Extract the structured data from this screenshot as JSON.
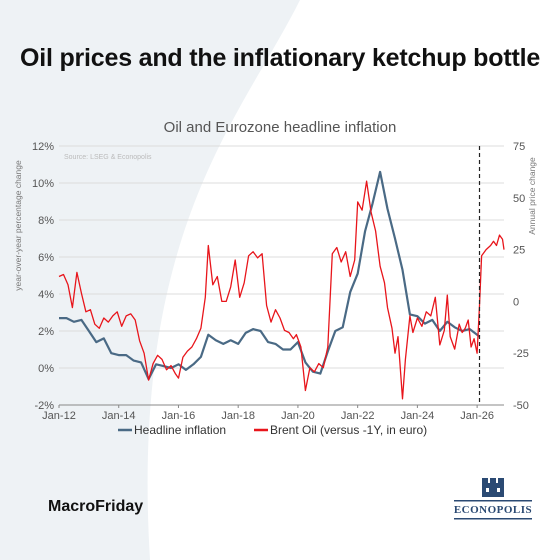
{
  "page": {
    "title": "Oil prices and the inflationary ketchup bottle",
    "footer": "MacroFriday",
    "logo_text": "ECONOPOLIS"
  },
  "colors": {
    "inflation": "#4a6a85",
    "oil": "#e8151b",
    "grid": "#dcdcdc",
    "background_shape": "#eef2f5",
    "logo": "#2b4a73"
  },
  "chart_data": {
    "type": "line",
    "title": "Oil and Eurozone headline inflation",
    "source": "Source: LSEG & Econopolis",
    "ylabel_left": "year-over-year percentage change",
    "ylabel_right": "Annual price change",
    "ylim_left": [
      -2,
      12
    ],
    "ylim_right": [
      -50,
      75
    ],
    "yticks_left": [
      "-2%",
      "0%",
      "2%",
      "4%",
      "6%",
      "8%",
      "10%",
      "12%"
    ],
    "yticks_right": [
      "-50",
      "-25",
      "0",
      "25",
      "50",
      "75"
    ],
    "xlim": [
      2012.0,
      2026.9
    ],
    "xticks": [
      "Jan-12",
      "Jan-14",
      "Jan-16",
      "Jan-18",
      "Jan-20",
      "Jan-22",
      "Jan-24",
      "Jan-26"
    ],
    "grid": true,
    "legend_position": "bottom",
    "vline_x": 2026.08,
    "series": [
      {
        "name": "Headline inflation",
        "axis": "left",
        "points": [
          [
            2012.0,
            2.7
          ],
          [
            2012.25,
            2.7
          ],
          [
            2012.5,
            2.5
          ],
          [
            2012.75,
            2.6
          ],
          [
            2013.0,
            2.0
          ],
          [
            2013.25,
            1.4
          ],
          [
            2013.5,
            1.6
          ],
          [
            2013.75,
            0.8
          ],
          [
            2014.0,
            0.7
          ],
          [
            2014.25,
            0.7
          ],
          [
            2014.5,
            0.4
          ],
          [
            2014.75,
            0.3
          ],
          [
            2015.0,
            -0.6
          ],
          [
            2015.25,
            0.2
          ],
          [
            2015.5,
            0.1
          ],
          [
            2015.75,
            0.0
          ],
          [
            2016.0,
            0.2
          ],
          [
            2016.25,
            -0.1
          ],
          [
            2016.5,
            0.2
          ],
          [
            2016.75,
            0.6
          ],
          [
            2017.0,
            1.8
          ],
          [
            2017.25,
            1.5
          ],
          [
            2017.5,
            1.3
          ],
          [
            2017.75,
            1.5
          ],
          [
            2018.0,
            1.3
          ],
          [
            2018.25,
            1.9
          ],
          [
            2018.5,
            2.1
          ],
          [
            2018.75,
            2.0
          ],
          [
            2019.0,
            1.4
          ],
          [
            2019.25,
            1.3
          ],
          [
            2019.5,
            1.0
          ],
          [
            2019.75,
            1.0
          ],
          [
            2020.0,
            1.4
          ],
          [
            2020.25,
            0.3
          ],
          [
            2020.5,
            -0.2
          ],
          [
            2020.75,
            -0.3
          ],
          [
            2021.0,
            0.9
          ],
          [
            2021.25,
            2.0
          ],
          [
            2021.5,
            2.2
          ],
          [
            2021.75,
            4.1
          ],
          [
            2022.0,
            5.1
          ],
          [
            2022.25,
            7.4
          ],
          [
            2022.5,
            8.9
          ],
          [
            2022.75,
            10.6
          ],
          [
            2023.0,
            8.6
          ],
          [
            2023.25,
            7.0
          ],
          [
            2023.5,
            5.3
          ],
          [
            2023.75,
            2.9
          ],
          [
            2024.0,
            2.8
          ],
          [
            2024.25,
            2.4
          ],
          [
            2024.5,
            2.6
          ],
          [
            2024.75,
            2.0
          ],
          [
            2025.0,
            2.5
          ],
          [
            2025.25,
            2.2
          ],
          [
            2025.5,
            2.0
          ],
          [
            2025.75,
            2.1
          ],
          [
            2026.0,
            1.8
          ],
          [
            2026.08,
            1.7
          ]
        ]
      },
      {
        "name": "Brent Oil (versus -1Y, in euro)",
        "axis": "right",
        "points": [
          [
            2012.0,
            12
          ],
          [
            2012.15,
            13
          ],
          [
            2012.3,
            8
          ],
          [
            2012.45,
            -3
          ],
          [
            2012.6,
            14
          ],
          [
            2012.75,
            4
          ],
          [
            2012.9,
            -5
          ],
          [
            2013.05,
            -4
          ],
          [
            2013.2,
            -11
          ],
          [
            2013.35,
            -13
          ],
          [
            2013.5,
            -8
          ],
          [
            2013.65,
            -10
          ],
          [
            2013.8,
            -7
          ],
          [
            2013.95,
            -5
          ],
          [
            2014.1,
            -12
          ],
          [
            2014.25,
            -7
          ],
          [
            2014.4,
            -6
          ],
          [
            2014.55,
            -9
          ],
          [
            2014.7,
            -19
          ],
          [
            2014.85,
            -25
          ],
          [
            2015.0,
            -38
          ],
          [
            2015.15,
            -30
          ],
          [
            2015.3,
            -26
          ],
          [
            2015.45,
            -28
          ],
          [
            2015.6,
            -33
          ],
          [
            2015.75,
            -31
          ],
          [
            2015.9,
            -35
          ],
          [
            2016.0,
            -37
          ],
          [
            2016.15,
            -27
          ],
          [
            2016.3,
            -24
          ],
          [
            2016.45,
            -22
          ],
          [
            2016.6,
            -18
          ],
          [
            2016.75,
            -13
          ],
          [
            2016.9,
            2
          ],
          [
            2017.0,
            27
          ],
          [
            2017.15,
            8
          ],
          [
            2017.3,
            12
          ],
          [
            2017.45,
            0
          ],
          [
            2017.6,
            0
          ],
          [
            2017.75,
            7
          ],
          [
            2017.9,
            20
          ],
          [
            2018.05,
            2
          ],
          [
            2018.2,
            9
          ],
          [
            2018.35,
            22
          ],
          [
            2018.5,
            24
          ],
          [
            2018.65,
            21
          ],
          [
            2018.8,
            23
          ],
          [
            2018.95,
            -2
          ],
          [
            2019.1,
            -10
          ],
          [
            2019.25,
            -4
          ],
          [
            2019.4,
            -8
          ],
          [
            2019.55,
            -14
          ],
          [
            2019.7,
            -15
          ],
          [
            2019.85,
            -18
          ],
          [
            2019.95,
            -16
          ],
          [
            2020.1,
            -22
          ],
          [
            2020.25,
            -43
          ],
          [
            2020.4,
            -32
          ],
          [
            2020.55,
            -34
          ],
          [
            2020.7,
            -30
          ],
          [
            2020.85,
            -32
          ],
          [
            2021.0,
            -22
          ],
          [
            2021.15,
            23
          ],
          [
            2021.3,
            26
          ],
          [
            2021.45,
            19
          ],
          [
            2021.6,
            24
          ],
          [
            2021.75,
            12
          ],
          [
            2021.9,
            20
          ],
          [
            2022.0,
            48
          ],
          [
            2022.15,
            44
          ],
          [
            2022.3,
            58
          ],
          [
            2022.45,
            43
          ],
          [
            2022.6,
            34
          ],
          [
            2022.75,
            17
          ],
          [
            2022.9,
            9
          ],
          [
            2023.0,
            -3
          ],
          [
            2023.15,
            -13
          ],
          [
            2023.25,
            -25
          ],
          [
            2023.35,
            -17
          ],
          [
            2023.5,
            -47
          ],
          [
            2023.6,
            -28
          ],
          [
            2023.75,
            -7
          ],
          [
            2023.85,
            -15
          ],
          [
            2024.0,
            -8
          ],
          [
            2024.15,
            -12
          ],
          [
            2024.3,
            -5
          ],
          [
            2024.45,
            -7
          ],
          [
            2024.6,
            2
          ],
          [
            2024.75,
            -21
          ],
          [
            2024.9,
            -14
          ],
          [
            2025.0,
            3
          ],
          [
            2025.1,
            -17
          ],
          [
            2025.25,
            -23
          ],
          [
            2025.4,
            -11
          ],
          [
            2025.5,
            -15
          ],
          [
            2025.6,
            -13
          ],
          [
            2025.7,
            -9
          ],
          [
            2025.8,
            -22
          ],
          [
            2025.9,
            -18
          ],
          [
            2026.0,
            -25
          ],
          [
            2026.08,
            -2
          ],
          [
            2026.15,
            22
          ],
          [
            2026.3,
            25
          ],
          [
            2026.45,
            27
          ],
          [
            2026.55,
            29
          ],
          [
            2026.65,
            27
          ],
          [
            2026.75,
            32
          ],
          [
            2026.85,
            30
          ],
          [
            2026.9,
            25
          ]
        ]
      }
    ]
  }
}
